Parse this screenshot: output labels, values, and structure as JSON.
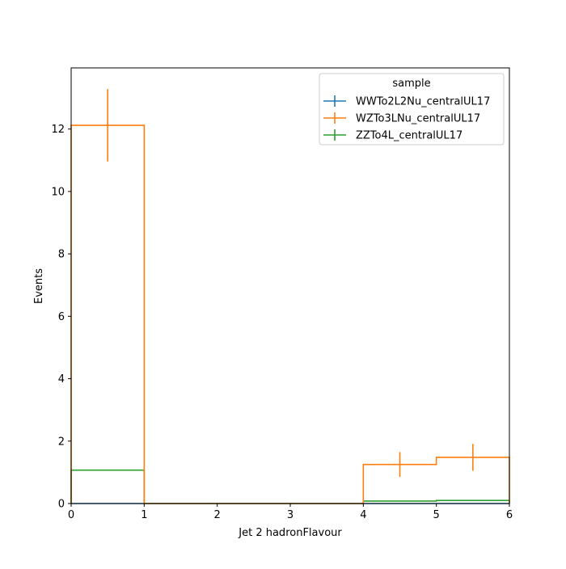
{
  "chart_data": {
    "type": "histogram",
    "xlabel": "Jet 2 hadronFlavour",
    "ylabel": "Events",
    "xlim": [
      0,
      6
    ],
    "ylim": [
      0,
      13.96
    ],
    "grid": false,
    "legend_position": "top-right",
    "legend_title": "sample",
    "x_ticks": [
      "0",
      "1",
      "2",
      "3",
      "4",
      "5",
      "6"
    ],
    "y_ticks": [
      "0",
      "2",
      "4",
      "6",
      "8",
      "10",
      "12"
    ],
    "bin_edges": [
      0,
      1,
      2,
      3,
      4,
      5,
      6
    ],
    "series": [
      {
        "name": "WWTo2L2Nu_centralUL17",
        "color": "#1f77b4",
        "values": [
          0,
          0,
          0,
          0,
          0,
          0
        ],
        "errors": [
          0,
          0,
          0,
          0,
          0,
          0
        ]
      },
      {
        "name": "WZTo3LNu_centralUL17",
        "color": "#ff7f0e",
        "values": [
          12.12,
          0,
          0,
          0,
          1.25,
          1.48
        ],
        "errors": [
          1.16,
          0,
          0,
          0,
          0.4,
          0.43
        ]
      },
      {
        "name": "ZZTo4L_centralUL17",
        "color": "#2ca02c",
        "values": [
          1.07,
          0,
          0,
          0,
          0.08,
          0.1
        ],
        "errors": [
          0,
          0,
          0,
          0,
          0,
          0
        ]
      }
    ]
  }
}
